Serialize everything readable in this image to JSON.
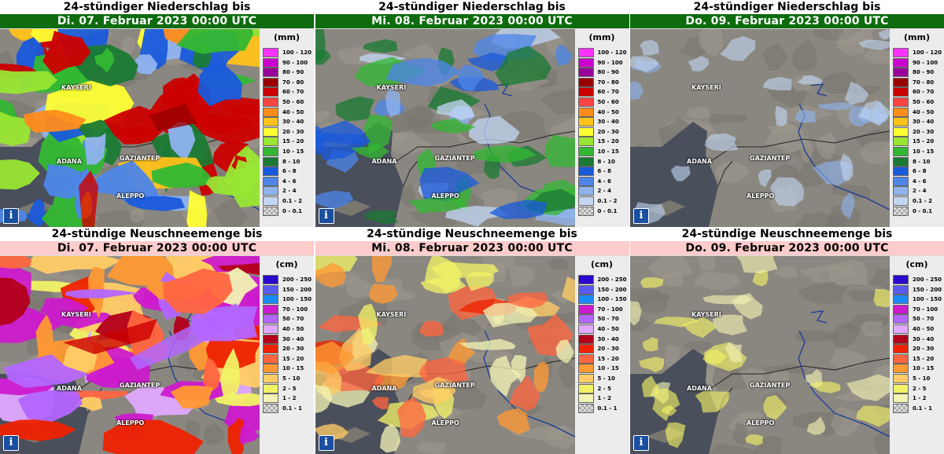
{
  "panels": [
    {
      "kind": "rain",
      "title": "24-stündiger Niederschlag bis",
      "date": "Di. 07. Februar 2023 00:00 UTC",
      "intensity": 1.0
    },
    {
      "kind": "rain",
      "title": "24-stündiger Niederschlag bis",
      "date": "Mi. 08. Februar 2023 00:00 UTC",
      "intensity": 0.55
    },
    {
      "kind": "rain",
      "title": "24-stündiger Niederschlag bis",
      "date": "Do. 09. Februar 2023 00:00 UTC",
      "intensity": 0.15
    },
    {
      "kind": "snow",
      "title": "24-stündige Neuschneemenge bis",
      "date": "Di. 07. Februar 2023 00:00 UTC",
      "intensity": 1.0
    },
    {
      "kind": "snow",
      "title": "24-stündige Neuschneemenge bis",
      "date": "Mi. 08. Februar 2023 00:00 UTC",
      "intensity": 0.55
    },
    {
      "kind": "snow",
      "title": "24-stündige Neuschneemenge bis",
      "date": "Do. 09. Februar 2023 00:00 UTC",
      "intensity": 0.2
    }
  ],
  "cities": {
    "kayseri": "KAYSERI",
    "adana": "ADANA",
    "gaziantep": "GAZIANTEP",
    "aleppo": "ALEPPO"
  },
  "info_label": "i",
  "rain_legend": {
    "unit": "(mm)",
    "classes": [
      {
        "label": "100 - 120",
        "color": "#ff33ff"
      },
      {
        "label": "90 - 100",
        "color": "#cc00cc"
      },
      {
        "label": "80 - 90",
        "color": "#990099"
      },
      {
        "label": "70 - 80",
        "color": "#990000"
      },
      {
        "label": "60 - 70",
        "color": "#cc0000"
      },
      {
        "label": "50 - 60",
        "color": "#ff4444"
      },
      {
        "label": "40 - 50",
        "color": "#ff8c1a"
      },
      {
        "label": "30 - 40",
        "color": "#ffc21a"
      },
      {
        "label": "20 - 30",
        "color": "#ffff33"
      },
      {
        "label": "15 - 20",
        "color": "#99e633"
      },
      {
        "label": "10 - 15",
        "color": "#33b833"
      },
      {
        "label": "8 - 10",
        "color": "#1a7a33"
      },
      {
        "label": "6 - 8",
        "color": "#1a5adb"
      },
      {
        "label": "4 - 6",
        "color": "#4d86e8"
      },
      {
        "label": "2 - 4",
        "color": "#8fb3ef"
      },
      {
        "label": "0.1 - 2",
        "color": "#c2d6f2"
      },
      {
        "label": "0 - 0.1",
        "color": "checker"
      }
    ]
  },
  "snow_legend": {
    "unit": "(cm)",
    "classes": [
      {
        "label": "200 - 250",
        "color": "#2a0acc"
      },
      {
        "label": "150 - 200",
        "color": "#5a5af0"
      },
      {
        "label": "100 - 150",
        "color": "#1a8cff"
      },
      {
        "label": "70 - 100",
        "color": "#cc1acc"
      },
      {
        "label": "50 - 70",
        "color": "#b366ff"
      },
      {
        "label": "40 - 50",
        "color": "#e0a8ff"
      },
      {
        "label": "30 - 40",
        "color": "#b3001a"
      },
      {
        "label": "20 - 30",
        "color": "#ee2200"
      },
      {
        "label": "15 - 20",
        "color": "#ff6640"
      },
      {
        "label": "10 - 15",
        "color": "#ff9933"
      },
      {
        "label": "5 - 10",
        "color": "#ffcc66"
      },
      {
        "label": "2 - 5",
        "color": "#f2f266"
      },
      {
        "label": "1 - 2",
        "color": "#f2f2b3"
      },
      {
        "label": "0.1 - 1",
        "color": "checker"
      }
    ]
  }
}
